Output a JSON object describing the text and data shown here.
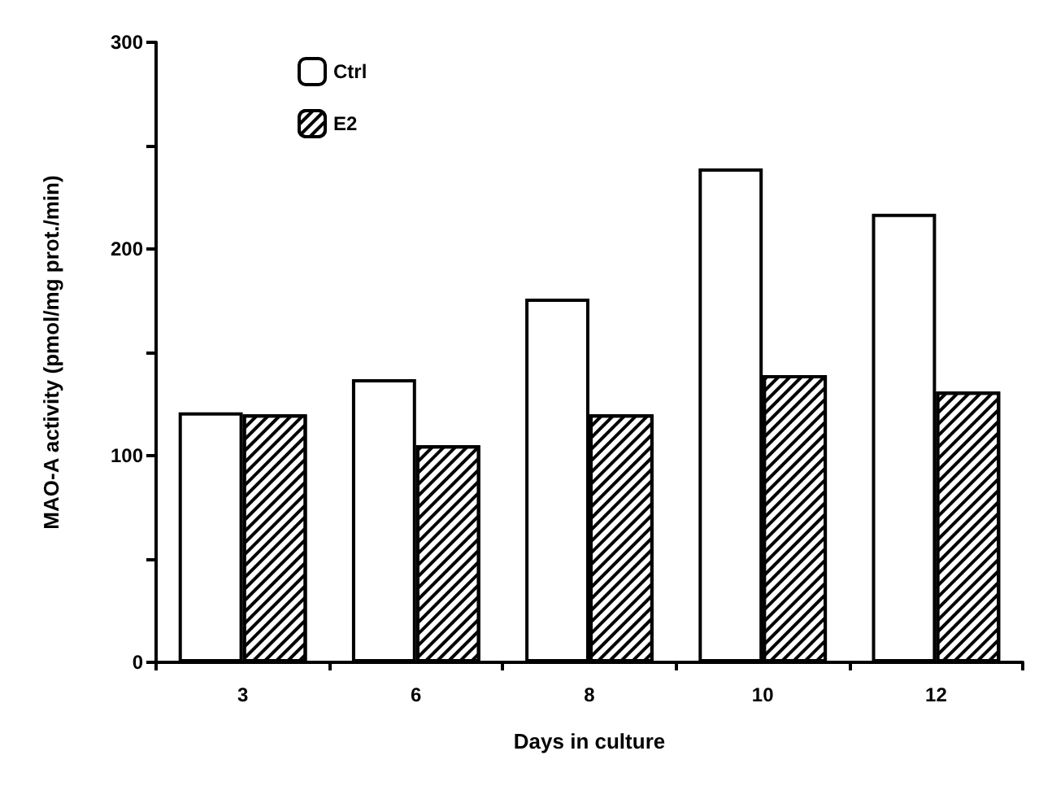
{
  "chart_data": {
    "type": "bar",
    "xlabel": "Days in culture",
    "ylabel": "MAO-A activity (pmol/mg prot./min)",
    "categories": [
      "3",
      "6",
      "8",
      "10",
      "12"
    ],
    "series": [
      {
        "name": "Ctrl",
        "color": "#ffffff",
        "values": [
          121,
          137,
          176,
          239,
          217
        ]
      },
      {
        "name": "E2",
        "color": "#000000",
        "values": [
          120,
          105,
          120,
          139,
          131
        ]
      }
    ],
    "ylim": [
      0,
      300
    ],
    "yticks": [
      0,
      {
        "value": 50,
        "label": null
      },
      100,
      {
        "value": 150,
        "label": null
      },
      200,
      {
        "value": 250,
        "label": null
      },
      300
    ],
    "grid": false,
    "legend": "top left"
  }
}
